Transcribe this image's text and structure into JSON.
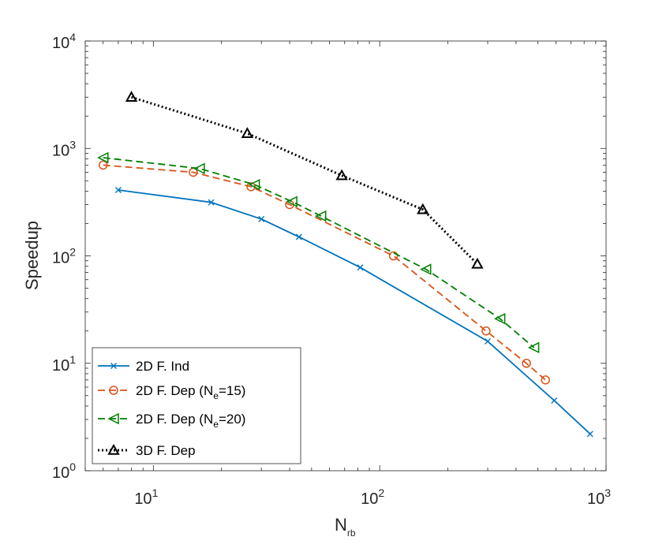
{
  "chart_data": {
    "type": "line",
    "xscale": "log",
    "yscale": "log",
    "xlim": [
      5,
      1000
    ],
    "ylim": [
      1,
      10000
    ],
    "xlabel": {
      "main": "N",
      "sub": "rb"
    },
    "ylabel": "Speedup",
    "x_ticks": [
      {
        "value": 10,
        "base": "10",
        "exp": "1"
      },
      {
        "value": 100,
        "base": "10",
        "exp": "2"
      },
      {
        "value": 1000,
        "base": "10",
        "exp": "3"
      }
    ],
    "y_ticks": [
      {
        "value": 1,
        "base": "10",
        "exp": "0"
      },
      {
        "value": 10,
        "base": "10",
        "exp": "1"
      },
      {
        "value": 100,
        "base": "10",
        "exp": "2"
      },
      {
        "value": 1000,
        "base": "10",
        "exp": "3"
      },
      {
        "value": 10000,
        "base": "10",
        "exp": "4"
      }
    ],
    "legend_position": "bottom-left",
    "series": [
      {
        "name": "2D F. Ind",
        "legend": {
          "main": "2D F. Ind",
          "sub": "",
          "tail": ""
        },
        "color": "#0072BD",
        "dash": "solid",
        "marker": "x",
        "x": [
          7,
          18,
          30,
          44,
          82,
          300,
          590,
          850
        ],
        "y": [
          410,
          315,
          220,
          150,
          78,
          16,
          4.5,
          2.2
        ]
      },
      {
        "name": "2D F. Dep (Ne=15)",
        "legend": {
          "main": "2D F. Dep (N",
          "sub": "e",
          "tail": "=15)"
        },
        "color": "#D95319",
        "dash": "dashed",
        "marker": "circle",
        "x": [
          6,
          15,
          27,
          40,
          115,
          295,
          445,
          540
        ],
        "y": [
          700,
          600,
          440,
          300,
          100,
          20,
          10,
          7
        ]
      },
      {
        "name": "2D F. Dep (Ne=20)",
        "legend": {
          "main": "2D F. Dep (N",
          "sub": "e",
          "tail": "=20)"
        },
        "color": "#008000",
        "dash": "dashed",
        "marker": "triangle-left",
        "x": [
          6,
          16,
          28,
          41,
          55,
          160,
          340,
          480
        ],
        "y": [
          820,
          650,
          460,
          320,
          235,
          75,
          26,
          14
        ]
      },
      {
        "name": "3D F. Dep",
        "legend": {
          "main": "3D F. Dep",
          "sub": "",
          "tail": ""
        },
        "color": "#000000",
        "dash": "dotted",
        "marker": "triangle-up",
        "x": [
          8,
          26,
          68,
          155,
          270
        ],
        "y": [
          3000,
          1380,
          560,
          270,
          84
        ]
      }
    ]
  }
}
